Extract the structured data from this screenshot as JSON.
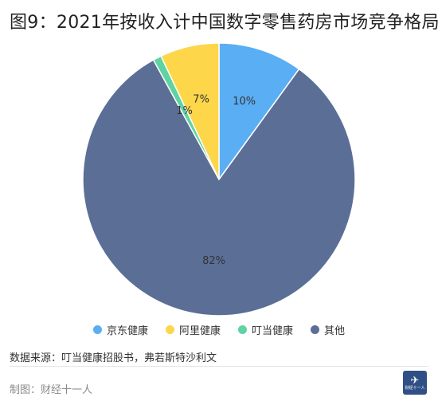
{
  "title": "图9：2021年按收入计中国数字零售药房市场竞争格局",
  "chart_data": {
    "type": "pie",
    "title": "图9：2021年按收入计中国数字零售药房市场竞争格局",
    "slices": [
      {
        "label": "京东健康",
        "value": 10,
        "display": "10%",
        "color": "#5aaef4"
      },
      {
        "label": "其他",
        "value": 82,
        "display": "82%",
        "color": "#5b6e96"
      },
      {
        "label": "叮当健康",
        "value": 1,
        "display": "1%",
        "color": "#5fd3a2"
      },
      {
        "label": "阿里健康",
        "value": 7,
        "display": "7%",
        "color": "#fdd64a"
      }
    ],
    "legend": [
      "京东健康",
      "阿里健康",
      "叮当健康",
      "其他"
    ],
    "legend_position": "bottom",
    "start": "top",
    "direction": "clockwise"
  },
  "source": "数据来源：叮当健康招股书，弗若斯特沙利文",
  "credit": "制图：财经十一人",
  "logo": {
    "text": "财经十一人"
  }
}
